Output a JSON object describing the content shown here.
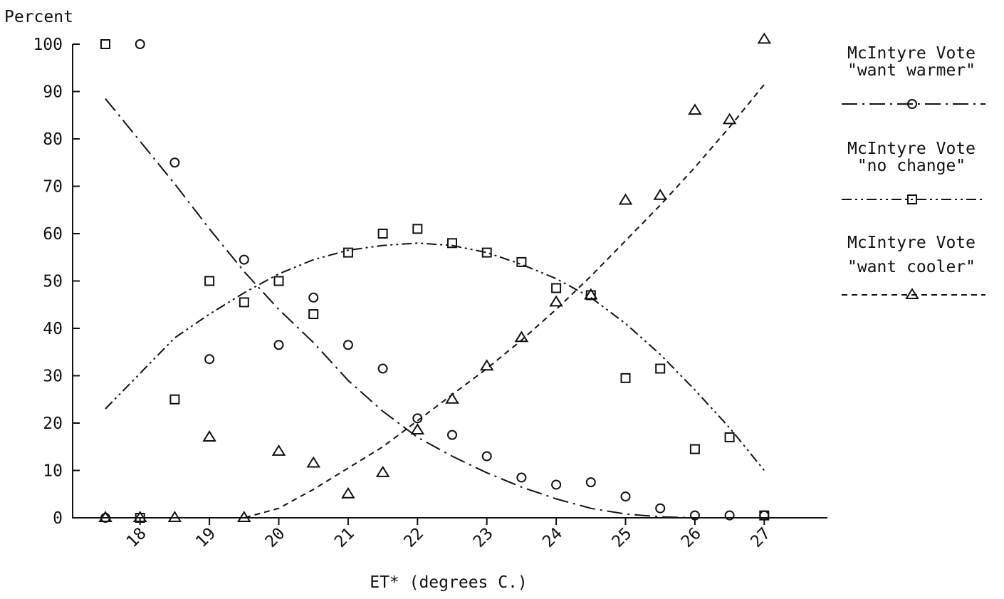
{
  "chart_data": {
    "type": "scatter",
    "ylabel": "Percent",
    "xlabel": "ET* (degrees C.)",
    "xlim": [
      17.5,
      27.3
    ],
    "ylim": [
      0,
      100
    ],
    "x_ticks": [
      18,
      19,
      20,
      21,
      22,
      23,
      24,
      25,
      26,
      27
    ],
    "x_tick_labels": [
      "18",
      "19",
      "20",
      "21",
      "22",
      "23",
      "24",
      "25",
      "26",
      "27"
    ],
    "y_ticks": [
      0,
      10,
      20,
      30,
      40,
      50,
      60,
      70,
      80,
      90,
      100
    ],
    "y_tick_labels": [
      "0",
      "10",
      "20",
      "30",
      "40",
      "50",
      "60",
      "70",
      "80",
      "90",
      "100"
    ],
    "grid": false,
    "legend_position": "right",
    "series": [
      {
        "name_line1": "McIntyre Vote",
        "name_line2": "\"want warmer\"",
        "marker": "circle",
        "line_style": "dash-dot",
        "x": [
          17.5,
          18,
          18.5,
          19,
          19.5,
          20,
          20.5,
          21,
          21.5,
          22,
          22.5,
          23,
          23.5,
          24,
          24.5,
          25,
          25.5,
          26,
          26.5,
          27
        ],
        "y": [
          0,
          100,
          75,
          33.5,
          54.5,
          36.5,
          46.5,
          36.5,
          31.5,
          21,
          17.5,
          13,
          8.5,
          7,
          7.5,
          4.5,
          2,
          0.5,
          0.5,
          0.5
        ],
        "fit_x": [
          17.5,
          18,
          18.5,
          19,
          19.5,
          20,
          20.5,
          21,
          21.5,
          22,
          22.5,
          23,
          23.5,
          24,
          24.5,
          25,
          25.5,
          26
        ],
        "fit_y": [
          88.5,
          79.5,
          70.5,
          61,
          52,
          44,
          37,
          29,
          22.5,
          17,
          13,
          9.5,
          6.5,
          4,
          2,
          0.8,
          0.2,
          0
        ]
      },
      {
        "name_line1": "McIntyre Vote",
        "name_line2": "\"no change\"",
        "marker": "square",
        "line_style": "dash-dot-dot",
        "x": [
          17.5,
          18,
          18.5,
          19,
          19.5,
          20,
          20.5,
          21,
          21.5,
          22,
          22.5,
          23,
          23.5,
          24,
          24.5,
          25,
          25.5,
          26,
          26.5,
          27
        ],
        "y": [
          100,
          0,
          25,
          50,
          45.5,
          50,
          43,
          56,
          60,
          61,
          58,
          56,
          54,
          48.5,
          47,
          29.5,
          31.5,
          14.5,
          17,
          0.5
        ],
        "fit_x": [
          17.5,
          18,
          18.5,
          19,
          19.5,
          20,
          20.5,
          21,
          21.5,
          22,
          22.5,
          23,
          23.5,
          24,
          24.5,
          25,
          25.5,
          26,
          26.5,
          27
        ],
        "fit_y": [
          23,
          30.5,
          38,
          43,
          47.5,
          51.5,
          54.5,
          56.5,
          57.5,
          58,
          57.5,
          56,
          53.5,
          50.5,
          46.5,
          41,
          34.5,
          27,
          19,
          10
        ]
      },
      {
        "name_line1": "McIntyre Vote",
        "name_line2": "\"want cooler\"",
        "marker": "triangle",
        "line_style": "dashed",
        "x": [
          17.5,
          18,
          18.5,
          19,
          19.5,
          20,
          20.5,
          21,
          21.5,
          22,
          22.5,
          23,
          23.5,
          24,
          24.5,
          25,
          25.5,
          26,
          26.5,
          27
        ],
        "y": [
          0,
          0,
          0,
          17,
          0,
          14,
          11.5,
          5,
          9.5,
          18.5,
          25,
          32,
          38,
          45.5,
          47,
          67,
          68,
          86,
          84,
          101
        ],
        "fit_x": [
          17.5,
          18,
          18.5,
          19,
          19.5,
          20,
          20.5,
          21,
          21.5,
          22,
          22.5,
          23,
          23.5,
          24,
          24.5,
          25,
          25.5,
          26,
          26.5,
          27
        ],
        "fit_y": [
          0,
          0,
          0,
          0,
          0,
          2,
          6,
          10.5,
          15,
          20.5,
          26,
          31.5,
          37.5,
          44,
          51,
          58.5,
          66,
          74,
          82.5,
          91.5
        ]
      }
    ]
  }
}
